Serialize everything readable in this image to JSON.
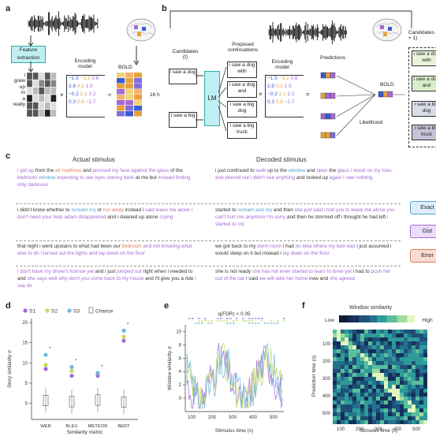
{
  "panels": {
    "a": "a",
    "b": "b",
    "c": "c",
    "d": "d",
    "e": "e",
    "f": "f"
  },
  "panel_a": {
    "feature_extraction": "Feature extraction",
    "encoding_model": "Encoding model",
    "bold": "BOLD",
    "hours": "16 h",
    "words": [
      "i",
      "grew",
      "up",
      "in",
      "a",
      "really"
    ],
    "weights": [
      [
        "−1.5",
        "−3.2",
        "0.6"
      ],
      [
        "2.8",
        "0.2",
        "1.5"
      ],
      [
        "−0.2",
        "2.1",
        "2.2"
      ],
      [
        "0.3",
        "0.9",
        "−2.7"
      ]
    ]
  },
  "panel_b": {
    "candidates_t": "Candidates (t)",
    "candidates_t1": "Candidates (t + 1)",
    "proposed": "Proposed continuations",
    "lm": "LM",
    "encoding_model": "Encoding model",
    "predictions": "Predictions",
    "bold": "BOLD",
    "likelihood": "Likelihood",
    "cand_top": "i saw a dog",
    "cand_bottom": "i saw a big",
    "continuations": [
      "i saw a dog with",
      "i saw a dog and",
      "i saw a big dog",
      "i saw a big truck"
    ],
    "next_candidates": [
      "i saw a dog with",
      "i saw a dog and",
      "i saw a big dog",
      "i saw a big truck"
    ],
    "weights": [
      [
        "−1.5",
        "−3.2",
        "0.6"
      ],
      [
        "2.8",
        "0.2",
        "1.5"
      ],
      [
        "−0.2",
        "2.1",
        "2.2"
      ],
      [
        "0.3",
        "0.9",
        "−2.7"
      ]
    ]
  },
  "panel_c": {
    "actual_title": "Actual stimulus",
    "decoded_title": "Decoded stimulus",
    "legend": {
      "exact": "Exact",
      "gist": "Gist",
      "error": "Error"
    },
    "colors": {
      "exact": "#4ea3d8",
      "gist": "#a56ad6",
      "error": "#e07a5a",
      "neutral": "#333333"
    },
    "actual": [
      [
        [
          "g",
          "i got up"
        ],
        [
          "n",
          " from the "
        ],
        [
          "e",
          "air mattress"
        ],
        [
          "n",
          " and "
        ],
        [
          "g",
          "pressed my face against the"
        ],
        [
          "n",
          " "
        ],
        [
          "g",
          "glass"
        ],
        [
          "n",
          " of the "
        ],
        [
          "g",
          "bedroom"
        ],
        [
          "n",
          " "
        ],
        [
          "x",
          "window"
        ],
        [
          "n",
          " "
        ],
        [
          "g",
          "expecting to see eyes staring back"
        ],
        [
          "n",
          " at me but "
        ],
        [
          "g",
          "instead finding only darkness"
        ]
      ],
      [
        [
          "n",
          "i didn't know whether to "
        ],
        [
          "x",
          "scream cry"
        ],
        [
          "n",
          " or "
        ],
        [
          "e",
          "run away"
        ],
        [
          "n",
          " instead i "
        ],
        [
          "g",
          "said leave me alone i don't need your help adam disappeared"
        ],
        [
          "n",
          " and i cleaned up alone "
        ],
        [
          "g",
          "crying"
        ]
      ],
      [
        [
          "n",
          "that night i went upstairs to what had been our "
        ],
        [
          "e",
          "bedroom"
        ],
        [
          "n",
          " "
        ],
        [
          "g",
          "and not knowing what else to do i turned out the lights and lay down on the floor"
        ]
      ],
      [
        [
          "g",
          "i don't have my driver's license yet"
        ],
        [
          "n",
          " and i just "
        ],
        [
          "g",
          "jumped out"
        ],
        [
          "n",
          " right when i needed to and "
        ],
        [
          "g",
          "she says well why don't you come back to my house"
        ],
        [
          "n",
          " and i'll give you a ride "
        ],
        [
          "g",
          "i say ok"
        ]
      ]
    ],
    "decoded": [
      [
        [
          "n",
          "i just continued to "
        ],
        [
          "g",
          "walk"
        ],
        [
          "n",
          " up to the "
        ],
        [
          "x",
          "window"
        ],
        [
          "n",
          " and "
        ],
        [
          "g",
          "open"
        ],
        [
          "n",
          " the "
        ],
        [
          "g",
          "glass i stood on my toes and peered out i didn't see anything"
        ],
        [
          "n",
          " and looked up "
        ],
        [
          "g",
          "again i saw nothing"
        ]
      ],
      [
        [
          "n",
          "started to "
        ],
        [
          "x",
          "scream and cry"
        ],
        [
          "n",
          " and then "
        ],
        [
          "g",
          "she just said i told you to leave me alone you can't hurt me anymore i'm sorry"
        ],
        [
          "n",
          " and then he stormed off i thought he had left "
        ],
        [
          "g",
          "i started to cry"
        ]
      ],
      [
        [
          "n",
          "we got back to my "
        ],
        [
          "g",
          "dorm room"
        ],
        [
          "n",
          " i had "
        ],
        [
          "g",
          "no idea where my bed was"
        ],
        [
          "n",
          " i just assumed i would sleep on it but instead i "
        ],
        [
          "g",
          "lay down on the floor"
        ]
      ],
      [
        [
          "n",
          "she is not ready "
        ],
        [
          "g",
          "she has not even started to learn to drive yet"
        ],
        [
          "n",
          " i had to "
        ],
        [
          "g",
          "push her out of the car"
        ],
        [
          "n",
          " i said "
        ],
        [
          "g",
          "we will take her home"
        ],
        [
          "n",
          " now and "
        ],
        [
          "g",
          "she agreed"
        ]
      ]
    ]
  },
  "panel_d": {
    "ylabel": "Story similarity σ",
    "xlabel": "Similarity metric",
    "legend": [
      {
        "name": "S1",
        "color": "#a56ad6"
      },
      {
        "name": "S2",
        "color": "#c7d95a"
      },
      {
        "name": "S3",
        "color": "#6fb6d9"
      },
      {
        "name": "Chance",
        "color": "#666666"
      }
    ],
    "yticks": [
      "0",
      "5",
      "10",
      "15",
      "20"
    ],
    "chart_data": {
      "type": "scatter",
      "categories": [
        "WER",
        "BLEU",
        "METEOR",
        "BERT"
      ],
      "series": [
        {
          "name": "S1",
          "values": [
            8.5,
            6.8,
            6.8,
            15.5
          ]
        },
        {
          "name": "S2",
          "values": [
            9.5,
            8.0,
            7.5,
            16.5
          ]
        },
        {
          "name": "S3",
          "values": [
            12.0,
            9.0,
            7.5,
            18.0
          ]
        }
      ],
      "chance_median": [
        0.7,
        0.4,
        0.8,
        0.3
      ],
      "ylim": [
        -4,
        21
      ]
    }
  },
  "panel_e": {
    "title": "q(FDR) < 0.05",
    "ylabel": "Window similarity σ",
    "xlabel": "Stimulus time (s)",
    "xticks": [
      "100",
      "200",
      "300",
      "400",
      "500"
    ],
    "yticks": [
      "0",
      "2",
      "4",
      "6",
      "8",
      "10"
    ]
  },
  "panel_f": {
    "title": "Window similarity",
    "low": "Low",
    "high": "High",
    "ylabel": "Prediction time (s)",
    "xlabel": "Stimulus time (s)",
    "xticks": [
      "100",
      "200",
      "300",
      "400",
      "500"
    ],
    "yticks": [
      "100",
      "200",
      "300",
      "400",
      "500"
    ]
  }
}
